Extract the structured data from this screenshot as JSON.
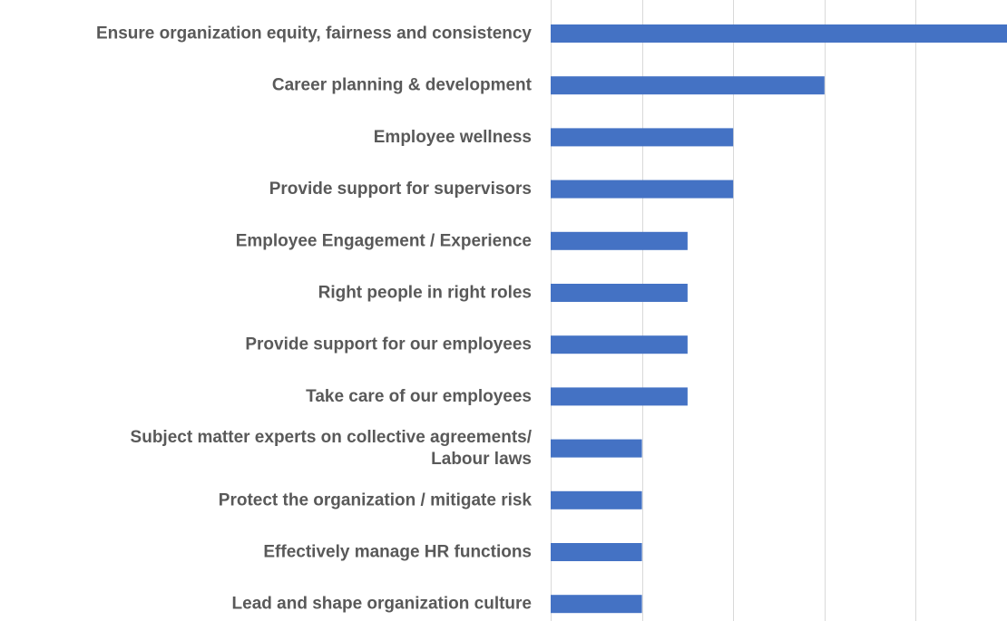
{
  "chart_data": {
    "type": "bar",
    "orientation": "horizontal",
    "categories": [
      [
        "Ensure organization equity, fairness and consistency"
      ],
      [
        "Career planning & development"
      ],
      [
        "Employee wellness"
      ],
      [
        "Provide support for supervisors"
      ],
      [
        "Employee Engagement / Experience"
      ],
      [
        "Right people in right roles"
      ],
      [
        "Provide support for our employees"
      ],
      [
        "Take care of our employees"
      ],
      [
        "Subject matter experts on collective agreements/",
        "Labour laws"
      ],
      [
        "Protect the organization / mitigate risk"
      ],
      [
        "Effectively manage HR functions"
      ],
      [
        "Lead and shape organization culture"
      ]
    ],
    "values": [
      10,
      6,
      4,
      4,
      3,
      3,
      3,
      3,
      2,
      2,
      2,
      2
    ],
    "xlim": [
      0,
      10
    ],
    "gridlines": [
      0,
      2,
      4,
      6,
      8,
      10
    ],
    "grid": true,
    "bar_color": "#4472c4",
    "grid_color": "#d9d9d9",
    "label_color": "#595959"
  }
}
